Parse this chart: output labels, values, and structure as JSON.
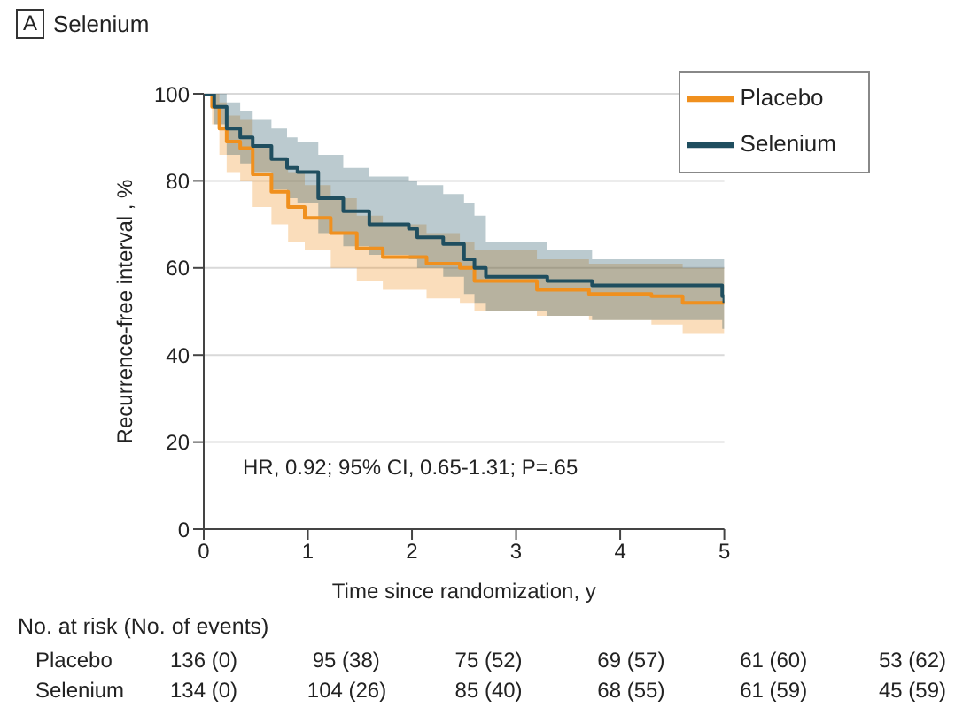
{
  "chart_data": {
    "type": "step",
    "title": "Selenium",
    "xlabel": "Time since randomization, y",
    "ylabel": "Recurrence-free interval , %",
    "xlim": [
      0,
      5
    ],
    "ylim": [
      0,
      100
    ],
    "xticks": [
      0,
      1,
      2,
      3,
      4,
      5
    ],
    "yticks": [
      0,
      20,
      40,
      60,
      80,
      100
    ],
    "grid": "y",
    "legend": "top right",
    "annotations": [
      "A",
      "HR, 0.92; 95% CI, 0.65-1.31; P=.65",
      "No. at risk (No. of events)",
      "Placebo",
      "136 (0)",
      "95 (38)",
      "75 (52)",
      "69 (57)",
      "61 (60)",
      "53 (62)",
      "Selenium",
      "134 (0)",
      "104 (26)",
      "85 (40)",
      "68 (55)",
      "61 (59)",
      "45 (59)"
    ],
    "series": [
      {
        "name": "Placebo",
        "color": "#f0901e",
        "x": [
          0,
          0.08,
          0.15,
          0.22,
          0.35,
          0.47,
          0.65,
          0.81,
          0.97,
          1.22,
          1.47,
          1.72,
          2.14,
          2.46,
          2.6,
          3.2,
          3.7,
          4.3,
          4.6,
          5
        ],
        "values": [
          100,
          97,
          92,
          89,
          87.5,
          81.5,
          77.5,
          74,
          71.5,
          68,
          64.5,
          62.5,
          61,
          60,
          57,
          55,
          54,
          53.5,
          52,
          52
        ],
        "upper": [
          100,
          100,
          98,
          95,
          94,
          88,
          85,
          82,
          79,
          76,
          72,
          70,
          68,
          66,
          64,
          62,
          61,
          61,
          60,
          60
        ],
        "lower": [
          100,
          93,
          86,
          82,
          80,
          74,
          70,
          66,
          64,
          60,
          57,
          55,
          53,
          52,
          50,
          49,
          48,
          47,
          45,
          44
        ]
      },
      {
        "name": "Selenium",
        "color": "#1f4e5f",
        "x": [
          0,
          0.1,
          0.22,
          0.35,
          0.47,
          0.65,
          0.8,
          0.9,
          1.1,
          1.34,
          1.59,
          1.97,
          2.05,
          2.3,
          2.5,
          2.6,
          2.71,
          3.3,
          3.73,
          4.98,
          5
        ],
        "values": [
          100,
          97,
          92,
          90,
          88,
          85,
          83,
          82,
          76,
          73,
          70,
          69,
          67,
          65.5,
          62,
          60,
          58,
          57,
          56,
          53.5,
          52
        ],
        "upper": [
          100,
          100,
          98,
          96,
          94,
          92,
          90,
          89,
          86,
          83,
          81,
          80,
          79,
          77,
          75,
          72,
          66,
          64,
          62,
          62,
          62
        ],
        "lower": [
          100,
          93,
          86,
          84,
          82,
          78,
          76,
          75,
          68,
          65,
          63,
          62,
          60,
          58,
          54,
          52,
          50,
          49,
          48,
          46,
          45
        ]
      }
    ]
  }
}
